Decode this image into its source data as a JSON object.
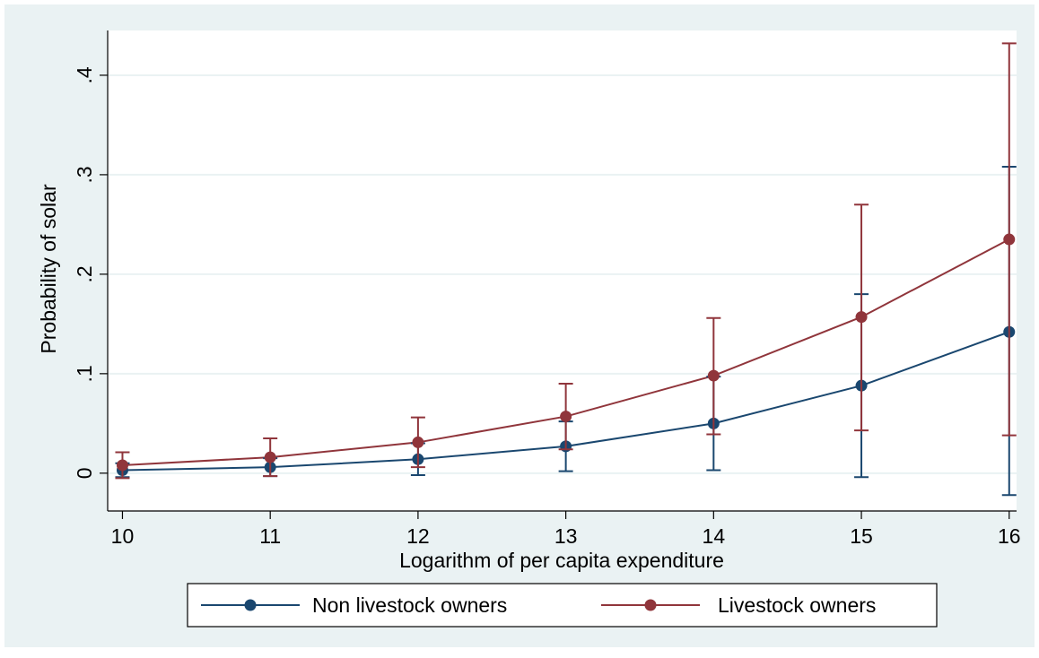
{
  "chart_data": {
    "type": "line",
    "title": "",
    "xlabel": "Logarithm of per capita expenditure",
    "ylabel": "Probability of solar",
    "x": [
      10,
      11,
      12,
      13,
      14,
      15,
      16
    ],
    "xlim": [
      9.9,
      16.05
    ],
    "ylim": [
      -0.038,
      0.445
    ],
    "x_ticks": [
      10,
      11,
      12,
      13,
      14,
      15,
      16
    ],
    "x_tick_labels": [
      "10",
      "11",
      "12",
      "13",
      "14",
      "15",
      "16"
    ],
    "y_ticks": [
      0,
      0.1,
      0.2,
      0.3,
      0.4
    ],
    "y_tick_labels": [
      "0",
      ".1",
      ".2",
      ".3",
      ".4"
    ],
    "grid": true,
    "legend_position": "bottom",
    "series": [
      {
        "name": "Non livestock owners",
        "color": "#1a476f",
        "values": [
          0.003,
          0.006,
          0.014,
          0.027,
          0.05,
          0.088,
          0.142
        ],
        "ci_lower": [
          -0.004,
          -0.003,
          -0.002,
          0.002,
          0.003,
          -0.004,
          -0.022
        ],
        "ci_upper": [
          0.01,
          0.015,
          0.03,
          0.052,
          0.097,
          0.18,
          0.308
        ]
      },
      {
        "name": "Livestock owners",
        "color": "#90353b",
        "values": [
          0.008,
          0.016,
          0.031,
          0.057,
          0.098,
          0.157,
          0.235
        ],
        "ci_lower": [
          -0.005,
          -0.003,
          0.006,
          0.024,
          0.039,
          0.043,
          0.038
        ],
        "ci_upper": [
          0.021,
          0.035,
          0.056,
          0.09,
          0.156,
          0.27,
          0.432
        ]
      }
    ]
  }
}
